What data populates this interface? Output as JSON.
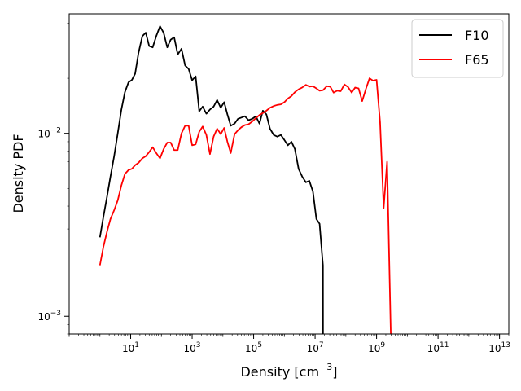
{
  "chart_data": {
    "type": "line",
    "title": "",
    "xlabel": "Density [cm",
    "xlabel_exp": "−3",
    "xlabel_close": "]",
    "ylabel": "Density PDF",
    "xscale": "log",
    "yscale": "log",
    "xlim": [
      0.1,
      20000000000000
    ],
    "ylim": [
      0.0008,
      0.045
    ],
    "x_ticks": [
      {
        "value": 10,
        "base": "10",
        "exp": "1"
      },
      {
        "value": 1000,
        "base": "10",
        "exp": "3"
      },
      {
        "value": 100000,
        "base": "10",
        "exp": "5"
      },
      {
        "value": 10000000,
        "base": "10",
        "exp": "7"
      },
      {
        "value": 1000000000,
        "base": "10",
        "exp": "9"
      },
      {
        "value": 100000000000,
        "base": "10",
        "exp": "11"
      },
      {
        "value": 10000000000000,
        "base": "10",
        "exp": "13"
      }
    ],
    "y_ticks": [
      {
        "value": 0.001,
        "base": "10",
        "exp": "−3"
      },
      {
        "value": 0.01,
        "base": "10",
        "exp": "−2"
      }
    ],
    "grid": false,
    "legend": "top-right",
    "series": [
      {
        "name": "F10",
        "color": "#000000",
        "points": [
          [
            1.0,
            0.0027
          ],
          [
            1.3,
            0.0035
          ],
          [
            1.7,
            0.0045
          ],
          [
            2.2,
            0.0058
          ],
          [
            2.9,
            0.0075
          ],
          [
            3.8,
            0.01
          ],
          [
            5.0,
            0.0135
          ],
          [
            6.5,
            0.0168
          ],
          [
            8.5,
            0.019
          ],
          [
            11,
            0.0196
          ],
          [
            14,
            0.0212
          ],
          [
            18,
            0.0275
          ],
          [
            24,
            0.034
          ],
          [
            31,
            0.0355
          ],
          [
            40,
            0.03
          ],
          [
            52,
            0.0295
          ],
          [
            68,
            0.034
          ],
          [
            90,
            0.0385
          ],
          [
            118,
            0.0355
          ],
          [
            155,
            0.0295
          ],
          [
            200,
            0.0325
          ],
          [
            260,
            0.0335
          ],
          [
            340,
            0.027
          ],
          [
            450,
            0.029
          ],
          [
            590,
            0.0235
          ],
          [
            770,
            0.0225
          ],
          [
            1000,
            0.0195
          ],
          [
            1300,
            0.0205
          ],
          [
            1700,
            0.0132
          ],
          [
            2200,
            0.014
          ],
          [
            2900,
            0.0128
          ],
          [
            3800,
            0.0135
          ],
          [
            5000,
            0.014
          ],
          [
            6500,
            0.0152
          ],
          [
            8500,
            0.0138
          ],
          [
            11000,
            0.0148
          ],
          [
            14000,
            0.0127
          ],
          [
            18000,
            0.011
          ],
          [
            24000,
            0.0113
          ],
          [
            31000,
            0.012
          ],
          [
            40000,
            0.0122
          ],
          [
            52000,
            0.0124
          ],
          [
            68000,
            0.0118
          ],
          [
            90000,
            0.012
          ],
          [
            118000,
            0.0124
          ],
          [
            155000,
            0.0113
          ],
          [
            200000,
            0.0133
          ],
          [
            260000,
            0.0127
          ],
          [
            340000,
            0.0106
          ],
          [
            450000,
            0.0098
          ],
          [
            590000,
            0.0096
          ],
          [
            770000,
            0.0098
          ],
          [
            1000000,
            0.0092
          ],
          [
            1300000,
            0.0086
          ],
          [
            1700000,
            0.009
          ],
          [
            2200000,
            0.0082
          ],
          [
            2900000,
            0.0064
          ],
          [
            3800000,
            0.0058
          ],
          [
            5000000,
            0.0054
          ],
          [
            6500000,
            0.0055
          ],
          [
            8500000,
            0.0048
          ],
          [
            11000000,
            0.0034
          ],
          [
            14000000,
            0.0032
          ],
          [
            18000000,
            0.0019
          ],
          [
            18100000,
            0.0008
          ]
        ]
      },
      {
        "name": "F65",
        "color": "#ff0000",
        "points": [
          [
            1.0,
            0.0019
          ],
          [
            1.3,
            0.0024
          ],
          [
            1.7,
            0.0029
          ],
          [
            2.2,
            0.0034
          ],
          [
            2.9,
            0.0038
          ],
          [
            3.8,
            0.0043
          ],
          [
            5.0,
            0.0052
          ],
          [
            6.5,
            0.006
          ],
          [
            8.5,
            0.0063
          ],
          [
            11,
            0.0064
          ],
          [
            14,
            0.0067
          ],
          [
            18,
            0.0069
          ],
          [
            24,
            0.0073
          ],
          [
            31,
            0.0075
          ],
          [
            40,
            0.0079
          ],
          [
            52,
            0.0084
          ],
          [
            68,
            0.0078
          ],
          [
            90,
            0.0073
          ],
          [
            118,
            0.0082
          ],
          [
            155,
            0.0089
          ],
          [
            200,
            0.0089
          ],
          [
            260,
            0.0081
          ],
          [
            340,
            0.0081
          ],
          [
            450,
            0.01
          ],
          [
            590,
            0.011
          ],
          [
            770,
            0.011
          ],
          [
            1000,
            0.0086
          ],
          [
            1300,
            0.0087
          ],
          [
            1700,
            0.0102
          ],
          [
            2200,
            0.0109
          ],
          [
            2900,
            0.0098
          ],
          [
            3800,
            0.0077
          ],
          [
            5000,
            0.0096
          ],
          [
            6500,
            0.0106
          ],
          [
            8500,
            0.0099
          ],
          [
            11000,
            0.0107
          ],
          [
            14000,
            0.009
          ],
          [
            18000,
            0.0078
          ],
          [
            24000,
            0.0099
          ],
          [
            31000,
            0.0104
          ],
          [
            40000,
            0.0108
          ],
          [
            52000,
            0.0111
          ],
          [
            68000,
            0.0112
          ],
          [
            90000,
            0.0116
          ],
          [
            118000,
            0.0121
          ],
          [
            155000,
            0.0126
          ],
          [
            200000,
            0.0129
          ],
          [
            260000,
            0.0133
          ],
          [
            340000,
            0.0138
          ],
          [
            450000,
            0.0141
          ],
          [
            590000,
            0.0143
          ],
          [
            770000,
            0.0144
          ],
          [
            1000000,
            0.0148
          ],
          [
            1300000,
            0.0155
          ],
          [
            1700000,
            0.016
          ],
          [
            2200000,
            0.0168
          ],
          [
            2900000,
            0.0174
          ],
          [
            3800000,
            0.0178
          ],
          [
            5000000,
            0.0184
          ],
          [
            6500000,
            0.018
          ],
          [
            8500000,
            0.0181
          ],
          [
            11000000,
            0.0176
          ],
          [
            14000000,
            0.0171
          ],
          [
            18000000,
            0.0172
          ],
          [
            24000000,
            0.0181
          ],
          [
            31000000,
            0.018
          ],
          [
            40000000,
            0.0167
          ],
          [
            52000000,
            0.0171
          ],
          [
            68000000,
            0.017
          ],
          [
            90000000,
            0.0185
          ],
          [
            118000000,
            0.0179
          ],
          [
            155000000,
            0.0167
          ],
          [
            200000000,
            0.0178
          ],
          [
            260000000,
            0.0176
          ],
          [
            340000000,
            0.015
          ],
          [
            450000000,
            0.0175
          ],
          [
            590000000,
            0.02
          ],
          [
            770000000,
            0.0194
          ],
          [
            1000000000,
            0.0196
          ],
          [
            1300000000,
            0.0115
          ],
          [
            1700000000,
            0.0039
          ],
          [
            2200000000,
            0.007
          ],
          [
            2900000000,
            0.0008
          ]
        ]
      }
    ]
  }
}
